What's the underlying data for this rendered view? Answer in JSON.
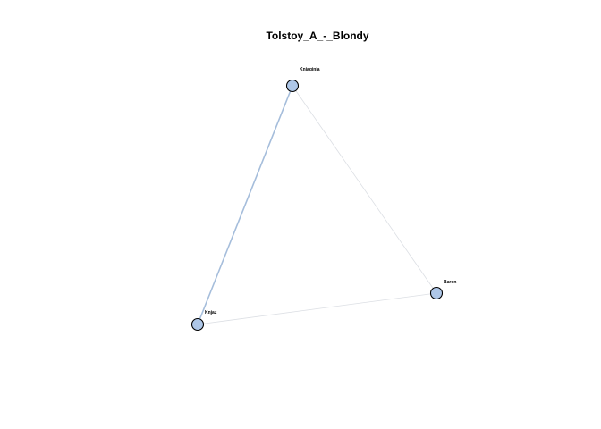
{
  "title": "Tolstoy_A_-_Blondy",
  "colors": {
    "node_fill": "#aec7e8",
    "node_stroke": "#000000",
    "strong_edge": "#a5bddb",
    "weak_edge": "#dcdfe4"
  },
  "nodes": [
    {
      "id": "knjaginja",
      "label": "Knjaginja"
    },
    {
      "id": "knjaz",
      "label": "Knjaz"
    },
    {
      "id": "baron",
      "label": "Baron"
    }
  ],
  "edges": [
    {
      "source": "knjaginja",
      "target": "knjaz",
      "weight": "strong"
    },
    {
      "source": "knjaginja",
      "target": "baron",
      "weight": "weak"
    },
    {
      "source": "knjaz",
      "target": "baron",
      "weight": "weak"
    }
  ]
}
